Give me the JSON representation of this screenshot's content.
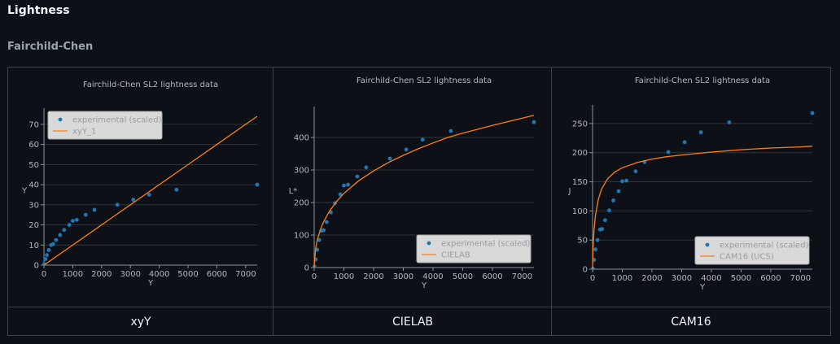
{
  "page": {
    "title": "Lightness",
    "section": "Fairchild-Chen"
  },
  "panels": [
    {
      "caption": "xyY"
    },
    {
      "caption": "CIELAB"
    },
    {
      "caption": "CAM16"
    }
  ],
  "colors": {
    "background": "#0d1117",
    "experimental": "#1f77b4",
    "model": "#ff7f0e",
    "grid": "#2f353c",
    "text": "#b1b8c0"
  },
  "chart_data": [
    {
      "type": "scatter",
      "title": "Fairchild-Chen SL2 lightness data",
      "xlabel": "Y",
      "ylabel": "Y",
      "xlim": [
        0,
        7400
      ],
      "ylim": [
        0,
        74
      ],
      "xticks": [
        0,
        1000,
        2000,
        3000,
        4000,
        5000,
        6000,
        7000
      ],
      "yticks": [
        0,
        10,
        20,
        30,
        40,
        50,
        60,
        70
      ],
      "legend_position": "top-left",
      "series": [
        {
          "name": "experimental (scaled)",
          "kind": "scatter",
          "x": [
            10,
            50,
            100,
            170,
            250,
            320,
            420,
            560,
            700,
            880,
            1000,
            1140,
            1450,
            1750,
            2550,
            3100,
            3650,
            4600,
            7400
          ],
          "y": [
            0.5,
            3,
            5,
            7.5,
            10,
            10.5,
            12.5,
            15,
            17.5,
            20,
            22,
            22.5,
            25,
            27.5,
            30,
            32.5,
            35,
            37.5,
            40
          ]
        },
        {
          "name": "xyY_1",
          "kind": "line",
          "x": [
            0,
            7400
          ],
          "y": [
            0,
            74
          ]
        }
      ]
    },
    {
      "type": "scatter",
      "title": "Fairchild-Chen SL2 lightness data",
      "xlabel": "Y",
      "ylabel": "L*",
      "xlim": [
        0,
        7400
      ],
      "ylim": [
        0,
        470
      ],
      "xticks": [
        0,
        1000,
        2000,
        3000,
        4000,
        5000,
        6000,
        7000
      ],
      "yticks": [
        0,
        100,
        200,
        300,
        400
      ],
      "legend_position": "bottom-right",
      "series": [
        {
          "name": "experimental (scaled)",
          "kind": "scatter",
          "x": [
            10,
            50,
            100,
            170,
            250,
            320,
            420,
            560,
            700,
            880,
            1000,
            1140,
            1450,
            1750,
            2550,
            3100,
            3650,
            4600,
            7400
          ],
          "y": [
            3,
            25,
            55,
            85,
            113,
            115,
            140,
            170,
            198,
            225,
            252,
            255,
            280,
            308,
            335,
            363,
            393,
            420,
            447
          ]
        },
        {
          "name": "CIELAB",
          "kind": "line",
          "x": [
            0,
            10,
            50,
            100,
            200,
            300,
            500,
            750,
            1000,
            1500,
            2000,
            2500,
            3000,
            3500,
            4000,
            4500,
            5000,
            5500,
            6000,
            6500,
            7000,
            7400
          ],
          "y": [
            0,
            19,
            58,
            83,
            114,
            137,
            171,
            203,
            228,
            267,
            297,
            323,
            345,
            365,
            383,
            400,
            413,
            425,
            437,
            448,
            459,
            468
          ]
        }
      ]
    },
    {
      "type": "scatter",
      "title": "Fairchild-Chen SL2 lightness data",
      "xlabel": "Y",
      "ylabel": "J",
      "xlim": [
        0,
        7400
      ],
      "ylim": [
        0,
        268
      ],
      "xticks": [
        0,
        1000,
        2000,
        3000,
        4000,
        5000,
        6000,
        7000
      ],
      "yticks": [
        0,
        50,
        100,
        150,
        200,
        250
      ],
      "legend_position": "bottom-right",
      "series": [
        {
          "name": "experimental (scaled)",
          "kind": "scatter",
          "x": [
            10,
            50,
            100,
            170,
            250,
            320,
            420,
            560,
            700,
            880,
            1000,
            1140,
            1450,
            1750,
            2550,
            3100,
            3650,
            4600,
            7400
          ],
          "y": [
            1,
            16,
            34,
            50,
            68,
            69,
            84,
            101,
            118,
            134,
            151,
            152,
            168,
            184,
            201,
            218,
            235,
            252,
            268
          ]
        },
        {
          "name": "CAM16 (UCS)",
          "kind": "line",
          "x": [
            0,
            20,
            50,
            100,
            200,
            300,
            500,
            750,
            1000,
            1500,
            2000,
            2500,
            3000,
            4000,
            5000,
            6000,
            7000,
            7400
          ],
          "y": [
            0,
            40,
            67,
            93,
            121,
            137,
            155,
            167,
            174,
            183,
            189,
            193,
            196,
            201,
            205,
            208,
            210,
            211
          ]
        }
      ]
    }
  ]
}
